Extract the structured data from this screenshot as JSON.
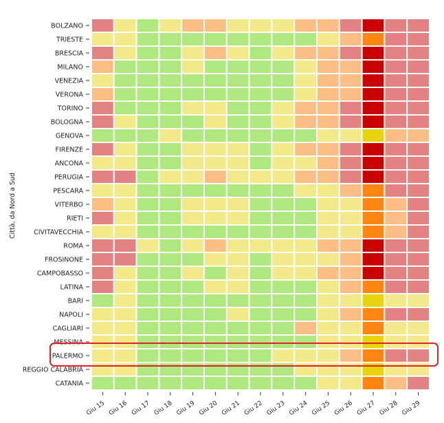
{
  "chart_data": {
    "type": "heatmap",
    "title": "",
    "xlabel": "",
    "ylabel": "Città, da Nord a Sud",
    "x": [
      "Giu 15",
      "Giu 16",
      "Giu 17",
      "Giu 18",
      "Giu 19",
      "Giu 20",
      "Giu 21",
      "Giu 22",
      "Giu 23",
      "Giu 24",
      "Giu 25",
      "Giu 26",
      "Giu 27",
      "Giu 28",
      "Giu 29"
    ],
    "y": [
      "BOLZANO",
      "TRIESTE",
      "BRESCIA",
      "MILANO",
      "VENEZIA",
      "VERONA",
      "TORINO",
      "BOLOGNA",
      "GENOVA",
      "FIRENZE",
      "ANCONA",
      "PERUGIA",
      "PESCARA",
      "VITERBO",
      "RIETI",
      "CIVITAVECCHIA",
      "ROMA",
      "FROSINONE",
      "CAMPOBASSO",
      "LATINA",
      "BARI",
      "NAPOLI",
      "CAGLIARI",
      "MESSINA",
      "PALERMO",
      "REGGIO CALABRIA",
      "CATANIA"
    ],
    "levels": [
      [
        3,
        1,
        0,
        1,
        2,
        2,
        1,
        1,
        1,
        2,
        2,
        3,
        5,
        3,
        3
      ],
      [
        1,
        1,
        0,
        0,
        0,
        0,
        0,
        0,
        0,
        0,
        1,
        2,
        4,
        3,
        3
      ],
      [
        3,
        1,
        0,
        0,
        1,
        2,
        1,
        0,
        1,
        2,
        2,
        3,
        5,
        3,
        3
      ],
      [
        2,
        0,
        0,
        0,
        1,
        0,
        0,
        0,
        0,
        1,
        2,
        2,
        5,
        3,
        3
      ],
      [
        1,
        0,
        0,
        0,
        0,
        0,
        0,
        0,
        0,
        1,
        2,
        2,
        5,
        3,
        3
      ],
      [
        2,
        0,
        0,
        0,
        0,
        0,
        0,
        0,
        0,
        1,
        2,
        2,
        5,
        3,
        3
      ],
      [
        3,
        0,
        0,
        0,
        1,
        1,
        0,
        0,
        1,
        2,
        2,
        3,
        5,
        3,
        3
      ],
      [
        3,
        1,
        0,
        0,
        0,
        1,
        0,
        0,
        1,
        2,
        2,
        3,
        5,
        3,
        3
      ],
      [
        0,
        0,
        0,
        1,
        0,
        0,
        0,
        0,
        0,
        0,
        1,
        1,
        6,
        2,
        2
      ],
      [
        3,
        1,
        0,
        0,
        1,
        1,
        1,
        0,
        1,
        2,
        2,
        3,
        5,
        3,
        3
      ],
      [
        1,
        1,
        0,
        0,
        1,
        1,
        1,
        0,
        1,
        1,
        2,
        3,
        5,
        3,
        3
      ],
      [
        3,
        3,
        0,
        1,
        1,
        2,
        1,
        1,
        1,
        2,
        2,
        3,
        5,
        3,
        3
      ],
      [
        1,
        1,
        0,
        0,
        0,
        0,
        0,
        0,
        0,
        1,
        1,
        2,
        4,
        3,
        3
      ],
      [
        2,
        1,
        0,
        0,
        1,
        1,
        1,
        0,
        0,
        0,
        1,
        1,
        4,
        2,
        3
      ],
      [
        3,
        1,
        0,
        0,
        1,
        1,
        1,
        0,
        0,
        0,
        1,
        1,
        4,
        2,
        3
      ],
      [
        1,
        1,
        0,
        0,
        0,
        0,
        0,
        0,
        0,
        0,
        1,
        1,
        4,
        2,
        3
      ],
      [
        3,
        3,
        1,
        0,
        1,
        2,
        1,
        1,
        1,
        1,
        2,
        2,
        5,
        3,
        3
      ],
      [
        3,
        3,
        0,
        0,
        0,
        1,
        1,
        0,
        1,
        1,
        1,
        2,
        5,
        3,
        3
      ],
      [
        3,
        1,
        0,
        0,
        1,
        0,
        1,
        0,
        1,
        1,
        2,
        2,
        5,
        3,
        3
      ],
      [
        3,
        1,
        0,
        0,
        0,
        1,
        1,
        0,
        0,
        0,
        1,
        2,
        4,
        3,
        3
      ],
      [
        0,
        1,
        0,
        0,
        0,
        0,
        0,
        0,
        0,
        0,
        1,
        1,
        6,
        1,
        1
      ],
      [
        1,
        1,
        0,
        0,
        0,
        0,
        1,
        0,
        0,
        0,
        1,
        2,
        4,
        3,
        3
      ],
      [
        1,
        1,
        0,
        0,
        0,
        0,
        0,
        0,
        0,
        2,
        1,
        1,
        4,
        1,
        1
      ],
      [
        1,
        1,
        0,
        0,
        0,
        0,
        0,
        0,
        0,
        0,
        1,
        1,
        6,
        1,
        1
      ],
      [
        1,
        1,
        0,
        0,
        0,
        0,
        0,
        0,
        1,
        1,
        1,
        2,
        4,
        3,
        3
      ],
      [
        1,
        1,
        0,
        0,
        0,
        0,
        0,
        0,
        0,
        1,
        1,
        1,
        6,
        1,
        1
      ],
      [
        0,
        0,
        0,
        0,
        0,
        0,
        0,
        0,
        0,
        0,
        1,
        1,
        4,
        2,
        3
      ]
    ],
    "highlight": {
      "row": "PALERMO",
      "color": "#e02020"
    },
    "colors": [
      "#aee87e",
      "#f1e98a",
      "#fcbe85",
      "#e38282",
      "#ff8410",
      "#c90000",
      "#e8d40a"
    ]
  }
}
